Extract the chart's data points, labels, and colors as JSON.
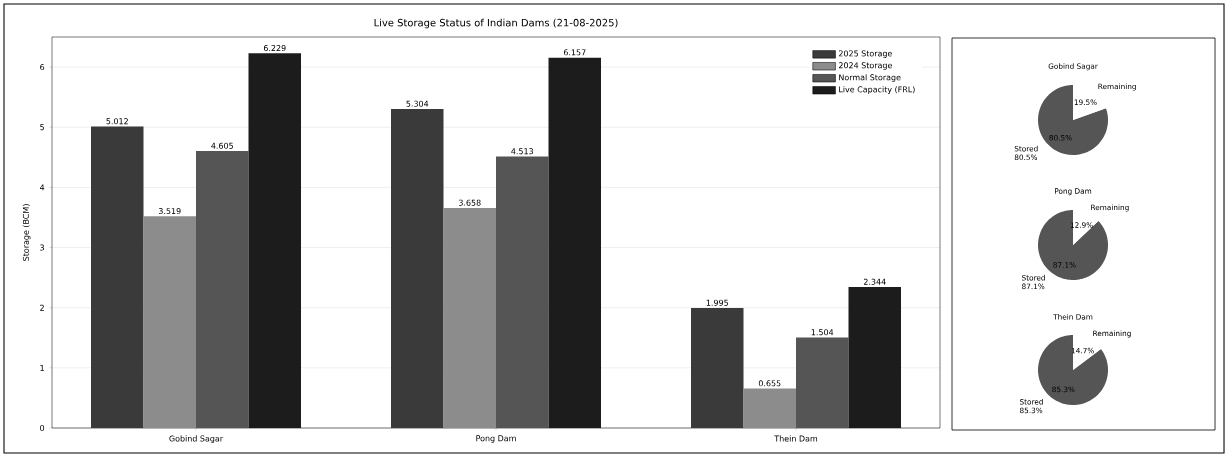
{
  "chart_data": [
    {
      "type": "bar",
      "title": "Live Storage Status of Indian Dams (21-08-2025)",
      "ylabel": "Storage (BCM)",
      "categories": [
        "Gobind Sagar",
        "Pong Dam",
        "Thein Dam"
      ],
      "series": [
        {
          "name": "2025 Storage",
          "color": "#3a3a3a",
          "values": [
            5.012,
            5.304,
            1.995
          ]
        },
        {
          "name": "2024 Storage",
          "color": "#8c8c8c",
          "values": [
            3.519,
            3.658,
            0.655
          ]
        },
        {
          "name": "Normal Storage",
          "color": "#555555",
          "values": [
            4.605,
            4.513,
            1.504
          ]
        },
        {
          "name": "Live Capacity (FRL)",
          "color": "#1c1c1c",
          "values": [
            6.229,
            6.157,
            2.344
          ]
        }
      ],
      "ylim": [
        0,
        6.5
      ],
      "yticks": [
        0,
        1,
        2,
        3,
        4,
        5,
        6
      ],
      "grid": "y",
      "legend": "top right",
      "data_labels": true
    },
    {
      "type": "pie",
      "title": "Gobind Sagar",
      "categories": [
        "Stored 80.5%",
        "Remaining"
      ],
      "values": [
        80.5,
        19.5
      ],
      "colors": [
        "#555555",
        "#ffffff"
      ],
      "value_labels": [
        "80.5%",
        "19.5%"
      ]
    },
    {
      "type": "pie",
      "title": "Pong Dam",
      "categories": [
        "Stored 87.1%",
        "Remaining"
      ],
      "values": [
        87.1,
        12.9
      ],
      "colors": [
        "#555555",
        "#ffffff"
      ],
      "value_labels": [
        "87.1%",
        "12.9%"
      ]
    },
    {
      "type": "pie",
      "title": "Thein Dam",
      "categories": [
        "Stored 85.3%",
        "Remaining"
      ],
      "values": [
        85.3,
        14.7
      ],
      "colors": [
        "#555555",
        "#ffffff"
      ],
      "value_labels": [
        "85.3%",
        "14.7%"
      ]
    }
  ]
}
